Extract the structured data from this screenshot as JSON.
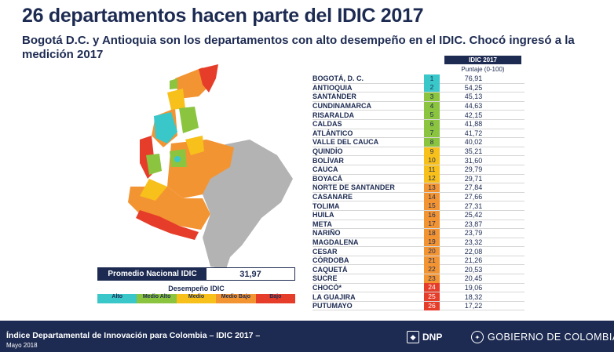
{
  "title": "26 departamentos hacen parte del IDIC 2017",
  "subtitle": "Bogotá D.C. y Antioquia son los departamentos con alto desempeño en el IDIC. Chocó ingresó a la medición 2017",
  "average": {
    "label": "Promedio Nacional IDIC",
    "value": "31,97"
  },
  "legend": {
    "title": "Desempeño IDIC",
    "items": [
      {
        "label": "Alto",
        "color": "#3ac7c9"
      },
      {
        "label": "Medio Alto",
        "color": "#8bc43f"
      },
      {
        "label": "Medio",
        "color": "#f8c01b"
      },
      {
        "label": "Medio Bajo",
        "color": "#f39433"
      },
      {
        "label": "Bajo",
        "color": "#e63d2a"
      }
    ]
  },
  "table": {
    "header": "IDIC 2017",
    "subheader": "Puntaje (0-100)",
    "rows": [
      {
        "name": "BOGOTÁ, D. C.",
        "rank": "1",
        "score": "76,91",
        "color": "#3ac7c9"
      },
      {
        "name": "ANTIOQUIA",
        "rank": "2",
        "score": "54,25",
        "color": "#3ac7c9"
      },
      {
        "name": "SANTANDER",
        "rank": "3",
        "score": "45,13",
        "color": "#8bc43f"
      },
      {
        "name": "CUNDINAMARCA",
        "rank": "4",
        "score": "44,63",
        "color": "#8bc43f"
      },
      {
        "name": "RISARALDA",
        "rank": "5",
        "score": "42,15",
        "color": "#8bc43f"
      },
      {
        "name": "CALDAS",
        "rank": "6",
        "score": "41,88",
        "color": "#8bc43f"
      },
      {
        "name": "ATLÁNTICO",
        "rank": "7",
        "score": "41,72",
        "color": "#8bc43f"
      },
      {
        "name": "VALLE DEL CAUCA",
        "rank": "8",
        "score": "40,02",
        "color": "#8bc43f"
      },
      {
        "name": "QUINDÍO",
        "rank": "9",
        "score": "35,21",
        "color": "#f8c01b"
      },
      {
        "name": "BOLÍVAR",
        "rank": "10",
        "score": "31,60",
        "color": "#f8c01b"
      },
      {
        "name": "CAUCA",
        "rank": "11",
        "score": "29,79",
        "color": "#f8c01b"
      },
      {
        "name": "BOYACÁ",
        "rank": "12",
        "score": "29,71",
        "color": "#f8c01b"
      },
      {
        "name": "NORTE DE SANTANDER",
        "rank": "13",
        "score": "27,84",
        "color": "#f39433"
      },
      {
        "name": "CASANARE",
        "rank": "14",
        "score": "27,66",
        "color": "#f39433"
      },
      {
        "name": "TOLIMA",
        "rank": "15",
        "score": "27,31",
        "color": "#f39433"
      },
      {
        "name": "HUILA",
        "rank": "16",
        "score": "25,42",
        "color": "#f39433"
      },
      {
        "name": "META",
        "rank": "17",
        "score": "23,87",
        "color": "#f39433"
      },
      {
        "name": "NARIÑO",
        "rank": "18",
        "score": "23,79",
        "color": "#f39433"
      },
      {
        "name": "MAGDALENA",
        "rank": "19",
        "score": "23,32",
        "color": "#f39433"
      },
      {
        "name": "CESAR",
        "rank": "20",
        "score": "22,08",
        "color": "#f39433"
      },
      {
        "name": "CÓRDOBA",
        "rank": "21",
        "score": "21,26",
        "color": "#f39433"
      },
      {
        "name": "CAQUETÁ",
        "rank": "22",
        "score": "20,53",
        "color": "#f39433"
      },
      {
        "name": "SUCRE",
        "rank": "23",
        "score": "20,45",
        "color": "#f39433"
      },
      {
        "name": "CHOCÓ*",
        "rank": "24",
        "score": "19,06",
        "color": "#e63d2a"
      },
      {
        "name": "LA GUAJIRA",
        "rank": "25",
        "score": "18,32",
        "color": "#e63d2a"
      },
      {
        "name": "PUTUMAYO",
        "rank": "26",
        "score": "17,22",
        "color": "#e63d2a"
      }
    ]
  },
  "footer": {
    "main": "Índice Departamental de Innovación para Colombia – IDIC 2017 –",
    "date": "Mayo 2018",
    "dnp_logo": "DNP",
    "dnp_icon": "shield-icon",
    "gov_logo": "GOBIERNO DE COLOMBIA",
    "gov_icon": "coat-of-arms-icon"
  },
  "colors": {
    "navy": "#1d2b52",
    "no_data": "#b3b3b3"
  }
}
